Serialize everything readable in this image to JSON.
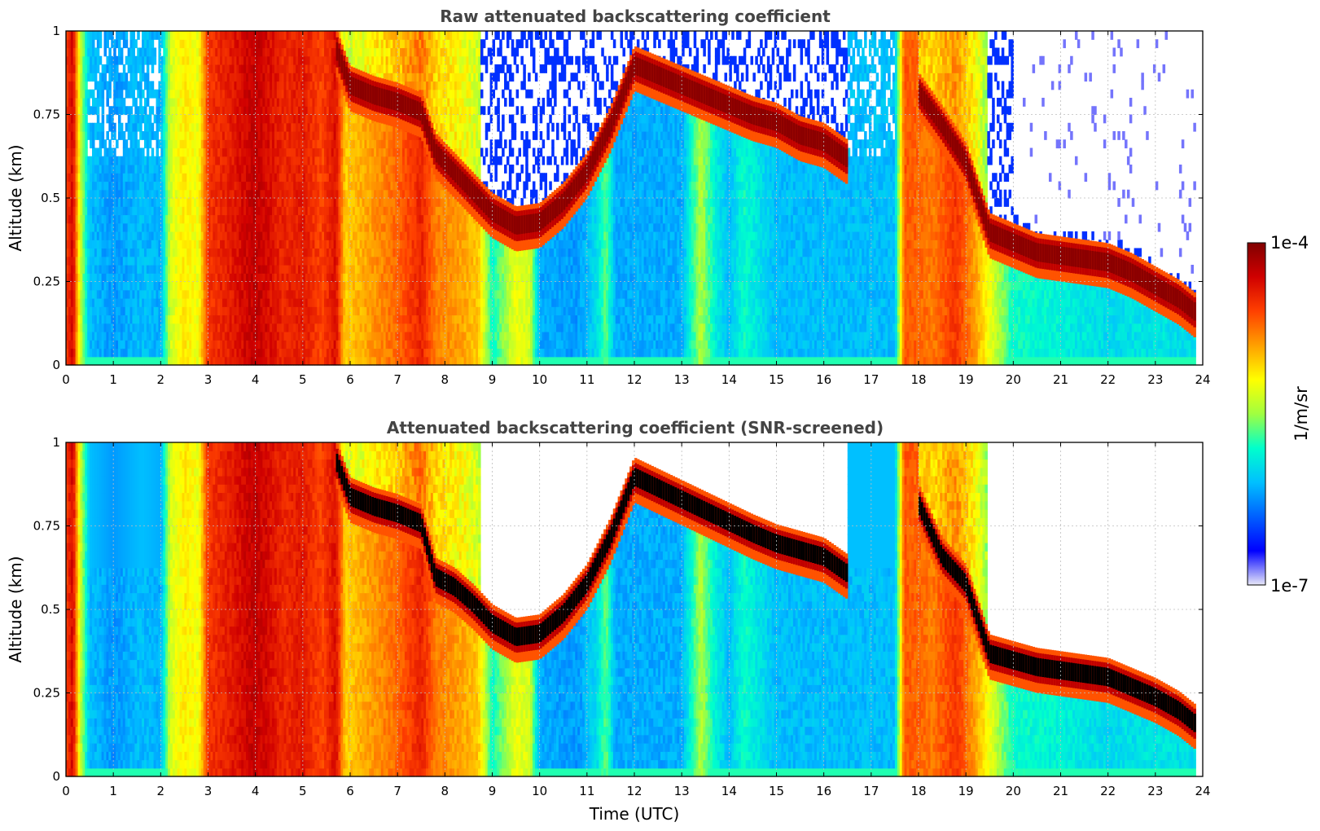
{
  "colors": {
    "colormap": [
      "#e8e8f8",
      "#0000ff",
      "#0060ff",
      "#00c0ff",
      "#00ffcc",
      "#a0ff40",
      "#ffff00",
      "#ffa000",
      "#ff4000",
      "#d00000",
      "#800000"
    ],
    "screened_cloud": "#000000",
    "title": "#444444"
  },
  "chart_data": [
    {
      "type": "heatmap",
      "id": "raw",
      "title": "Raw attenuated backscattering coefficient",
      "xlabel": "",
      "ylabel": "Altitude (km)",
      "xlim": [
        0,
        24
      ],
      "ylim": [
        0,
        1
      ],
      "xticks": [
        "0",
        "1",
        "2",
        "3",
        "4",
        "5",
        "6",
        "7",
        "8",
        "9",
        "10",
        "11",
        "12",
        "13",
        "14",
        "15",
        "16",
        "17",
        "18",
        "19",
        "20",
        "21",
        "22",
        "23",
        "24"
      ],
      "yticks": [
        "0",
        "0.25",
        "0.5",
        "0.75",
        "1"
      ],
      "grid": true,
      "data_end_hour": 23.85,
      "cloud_layer": {
        "hours": [
          0,
          5.7,
          6.0,
          6.5,
          7.0,
          7.5,
          7.8,
          8.2,
          8.6,
          9.0,
          9.5,
          10.0,
          10.5,
          11.0,
          11.5,
          12.0,
          14.5,
          15.0,
          15.5,
          16.0,
          16.5,
          17.0,
          17.5,
          18.0,
          18.5,
          19.0,
          19.5,
          20.0,
          20.5,
          21.0,
          21.5,
          22.0,
          22.5,
          23.0,
          23.5,
          23.85
        ],
        "alt_km": [
          null,
          0.95,
          0.84,
          0.81,
          0.79,
          0.76,
          0.64,
          0.58,
          0.52,
          0.46,
          0.42,
          0.43,
          0.49,
          0.58,
          0.72,
          0.9,
          0.75,
          0.73,
          0.69,
          0.67,
          0.62,
          null,
          null,
          0.82,
          0.72,
          0.61,
          0.4,
          0.37,
          0.34,
          0.33,
          0.32,
          0.31,
          0.28,
          0.24,
          0.2,
          0.16
        ]
      },
      "colorbar": {
        "label": "1/m/sr",
        "min_label": "1e-7",
        "max_label": "1e-4",
        "scale": "log"
      }
    },
    {
      "type": "heatmap",
      "id": "screened",
      "title": "Attenuated backscattering coefficient (SNR-screened)",
      "xlabel": "Time (UTC)",
      "ylabel": "Altitude (km)",
      "xlim": [
        0,
        24
      ],
      "ylim": [
        0,
        1
      ],
      "xticks": [
        "0",
        "1",
        "2",
        "3",
        "4",
        "5",
        "6",
        "7",
        "8",
        "9",
        "10",
        "11",
        "12",
        "13",
        "14",
        "15",
        "16",
        "17",
        "18",
        "19",
        "20",
        "21",
        "22",
        "23",
        "24"
      ],
      "yticks": [
        "0",
        "0.25",
        "0.5",
        "0.75",
        "1"
      ],
      "grid": true,
      "data_end_hour": 23.85,
      "cloud_layer": {
        "hours": [
          0,
          5.7,
          6.0,
          6.5,
          7.0,
          7.5,
          7.8,
          8.2,
          8.6,
          9.0,
          9.5,
          10.0,
          10.5,
          11.0,
          11.5,
          12.0,
          14.5,
          15.0,
          15.5,
          16.0,
          16.5,
          17.0,
          17.5,
          18.0,
          18.5,
          19.0,
          19.5,
          20.0,
          20.5,
          21.0,
          21.5,
          22.0,
          22.5,
          23.0,
          23.5,
          23.85
        ],
        "alt_km": [
          null,
          0.95,
          0.84,
          0.81,
          0.79,
          0.76,
          0.6,
          0.57,
          0.52,
          0.46,
          0.42,
          0.43,
          0.49,
          0.58,
          0.72,
          0.9,
          0.73,
          0.7,
          0.68,
          0.66,
          0.61,
          null,
          null,
          0.82,
          0.66,
          0.58,
          0.37,
          0.35,
          0.33,
          0.32,
          0.31,
          0.3,
          0.27,
          0.24,
          0.2,
          0.16
        ]
      }
    }
  ]
}
